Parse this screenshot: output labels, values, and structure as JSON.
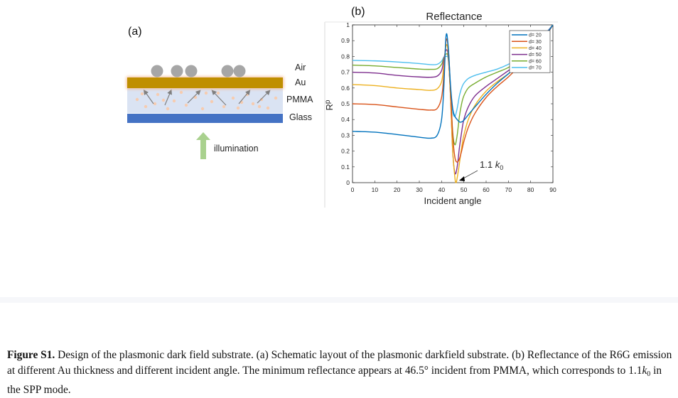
{
  "panel_a": {
    "label": "(a)",
    "layers": {
      "air": "Air",
      "au": "Au",
      "pmma": "PMMA",
      "glass": "Glass"
    },
    "illumination_label": "illumination",
    "colors": {
      "au": "#BF8F00",
      "pmma": "#DAE3F3",
      "glass": "#4472C4",
      "particle": "#A6A6A6",
      "emitter": "#F4B183",
      "illumination_arrow": "#A9D18E"
    }
  },
  "panel_b": {
    "label": "(b)",
    "annotation": {
      "text": "1.1 ",
      "k_symbol": "k",
      "k_subscript": "0",
      "points_to_angle": 48
    }
  },
  "chart_data": {
    "type": "line",
    "title": "Reflectance",
    "xlabel": "Incident angle",
    "ylabel": "R",
    "ylabel_subscript": "p",
    "xlim": [
      0,
      90
    ],
    "ylim": [
      0,
      1
    ],
    "xticks": [
      0,
      10,
      20,
      30,
      40,
      50,
      60,
      70,
      80,
      90
    ],
    "xtick_labels": [
      "0",
      "10",
      "20",
      "30",
      "40",
      "50",
      "60",
      "70",
      "80",
      "90"
    ],
    "yticks": [
      0,
      0.1,
      0.2,
      0.3,
      0.4,
      0.5,
      0.6,
      0.7,
      0.8,
      0.9,
      1
    ],
    "ytick_labels": [
      "0",
      "0.1",
      "0.2",
      "0.3",
      "0.4",
      "0.5",
      "0.6",
      "0.7",
      "0.8",
      "0.9",
      "1"
    ],
    "grid": false,
    "legend_position": "top-right",
    "series": [
      {
        "name": "d= 20",
        "color": "#0072BD",
        "x": [
          0,
          10,
          20,
          30,
          35,
          38,
          40,
          41,
          42,
          43,
          44,
          45,
          46,
          47,
          48,
          49,
          50,
          52,
          55,
          60,
          65,
          70,
          75,
          80,
          85,
          90
        ],
        "y": [
          0.325,
          0.32,
          0.305,
          0.288,
          0.282,
          0.3,
          0.4,
          0.6,
          0.93,
          0.86,
          0.62,
          0.47,
          0.42,
          0.4,
          0.385,
          0.385,
          0.395,
          0.43,
          0.48,
          0.56,
          0.63,
          0.69,
          0.75,
          0.82,
          0.9,
          1.0
        ]
      },
      {
        "name": "d= 30",
        "color": "#D95319",
        "x": [
          0,
          10,
          20,
          30,
          35,
          38,
          40,
          41,
          42,
          43,
          44,
          45,
          46,
          47,
          48,
          49,
          50,
          52,
          55,
          60,
          65,
          70,
          75,
          80,
          85,
          90
        ],
        "y": [
          0.5,
          0.495,
          0.48,
          0.465,
          0.46,
          0.47,
          0.54,
          0.68,
          0.9,
          0.85,
          0.6,
          0.3,
          0.16,
          0.13,
          0.15,
          0.2,
          0.26,
          0.35,
          0.44,
          0.54,
          0.61,
          0.67,
          0.74,
          0.81,
          0.89,
          1.0
        ]
      },
      {
        "name": "d= 40",
        "color": "#EDB120",
        "x": [
          0,
          10,
          20,
          30,
          35,
          38,
          40,
          41,
          42,
          43,
          44,
          45,
          46,
          46.5,
          47,
          48,
          49,
          50,
          52,
          55,
          60,
          65,
          70,
          75,
          80,
          85,
          90
        ],
        "y": [
          0.622,
          0.615,
          0.6,
          0.59,
          0.585,
          0.595,
          0.64,
          0.74,
          0.87,
          0.82,
          0.55,
          0.2,
          0.03,
          0.0,
          0.03,
          0.12,
          0.22,
          0.3,
          0.4,
          0.49,
          0.58,
          0.64,
          0.69,
          0.75,
          0.82,
          0.9,
          1.0
        ]
      },
      {
        "name": "d= 50",
        "color": "#7E2F8E",
        "x": [
          0,
          10,
          20,
          30,
          35,
          38,
          40,
          41,
          42,
          43,
          44,
          45,
          46,
          47,
          48,
          49,
          50,
          52,
          55,
          60,
          65,
          70,
          75,
          80,
          85,
          90
        ],
        "y": [
          0.7,
          0.695,
          0.68,
          0.67,
          0.668,
          0.675,
          0.71,
          0.78,
          0.84,
          0.8,
          0.55,
          0.2,
          0.06,
          0.1,
          0.22,
          0.32,
          0.4,
          0.48,
          0.55,
          0.61,
          0.66,
          0.71,
          0.76,
          0.83,
          0.91,
          1.0
        ]
      },
      {
        "name": "d= 60",
        "color": "#77AC30",
        "x": [
          0,
          10,
          20,
          30,
          35,
          38,
          40,
          41,
          42,
          43,
          44,
          45,
          46,
          47,
          48,
          49,
          50,
          52,
          55,
          60,
          65,
          70,
          75,
          80,
          85,
          90
        ],
        "y": [
          0.745,
          0.74,
          0.73,
          0.72,
          0.718,
          0.722,
          0.75,
          0.79,
          0.815,
          0.79,
          0.58,
          0.32,
          0.24,
          0.3,
          0.42,
          0.5,
          0.55,
          0.6,
          0.63,
          0.67,
          0.7,
          0.73,
          0.78,
          0.84,
          0.91,
          1.0
        ]
      },
      {
        "name": "d= 70",
        "color": "#4DBEEE",
        "x": [
          0,
          10,
          20,
          30,
          35,
          38,
          40,
          41,
          42,
          43,
          44,
          45,
          46,
          47,
          48,
          49,
          50,
          52,
          55,
          60,
          65,
          70,
          75,
          80,
          85,
          90
        ],
        "y": [
          0.775,
          0.772,
          0.765,
          0.755,
          0.748,
          0.75,
          0.77,
          0.795,
          0.8,
          0.78,
          0.6,
          0.45,
          0.42,
          0.47,
          0.55,
          0.6,
          0.63,
          0.66,
          0.68,
          0.7,
          0.72,
          0.75,
          0.79,
          0.85,
          0.92,
          1.0
        ]
      }
    ]
  },
  "caption": {
    "figure_label": "Figure S1.",
    "text_1": " Design of the plasmonic dark field substrate. (a) Schematic layout of the plasmonic darkfield substrate. (b) Reflectance of the R6G emission at different Au thickness and different incident angle. The minimum reflectance appears at 46.5° incident from PMMA, which corresponds to 1.1",
    "k_symbol": "k",
    "k_subscript": "0",
    "text_2": " in the SPP mode."
  }
}
